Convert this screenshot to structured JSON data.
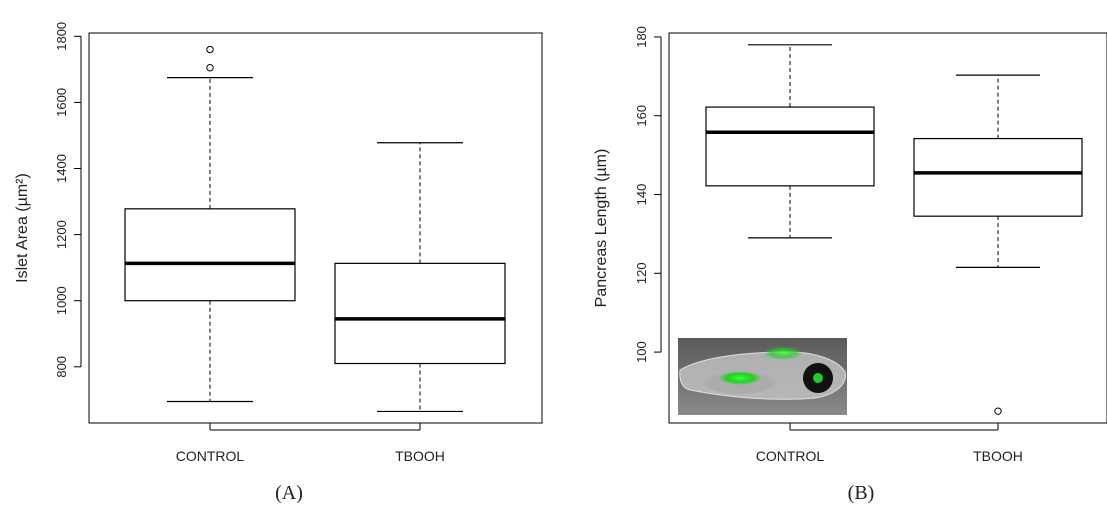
{
  "chart_data": [
    {
      "type": "boxplot",
      "panel_label": "(A)",
      "ylabel": "Islet Area (µm²)",
      "categories": [
        "CONTROL",
        "TBOOH"
      ],
      "ylim": [
        630,
        1810
      ],
      "yticks": [
        800,
        1000,
        1200,
        1400,
        1600,
        1800
      ],
      "boxes": [
        {
          "category": "CONTROL",
          "whisker_low": 695,
          "q1": 1000,
          "median": 1113,
          "q3": 1278,
          "whisker_high": 1675,
          "outliers": [
            1705,
            1760
          ]
        },
        {
          "category": "TBOOH",
          "whisker_low": 665,
          "q1": 810,
          "median": 945,
          "q3": 1113,
          "whisker_high": 1478,
          "outliers": []
        }
      ]
    },
    {
      "type": "boxplot",
      "panel_label": "(B)",
      "ylabel": "Pancreas Length (µm)",
      "categories": [
        "CONTROL",
        "TBOOH"
      ],
      "ylim": [
        82,
        181
      ],
      "yticks": [
        100,
        120,
        140,
        160,
        180
      ],
      "inset": "zebrafish larva fluorescence micrograph",
      "boxes": [
        {
          "category": "CONTROL",
          "whisker_low": 129,
          "q1": 142.2,
          "median": 155.8,
          "q3": 162.2,
          "whisker_high": 178,
          "outliers": []
        },
        {
          "category": "TBOOH",
          "whisker_low": 121.5,
          "q1": 134.5,
          "median": 145.5,
          "q3": 154.2,
          "whisker_high": 170.3,
          "outliers": [
            85
          ]
        }
      ]
    }
  ]
}
